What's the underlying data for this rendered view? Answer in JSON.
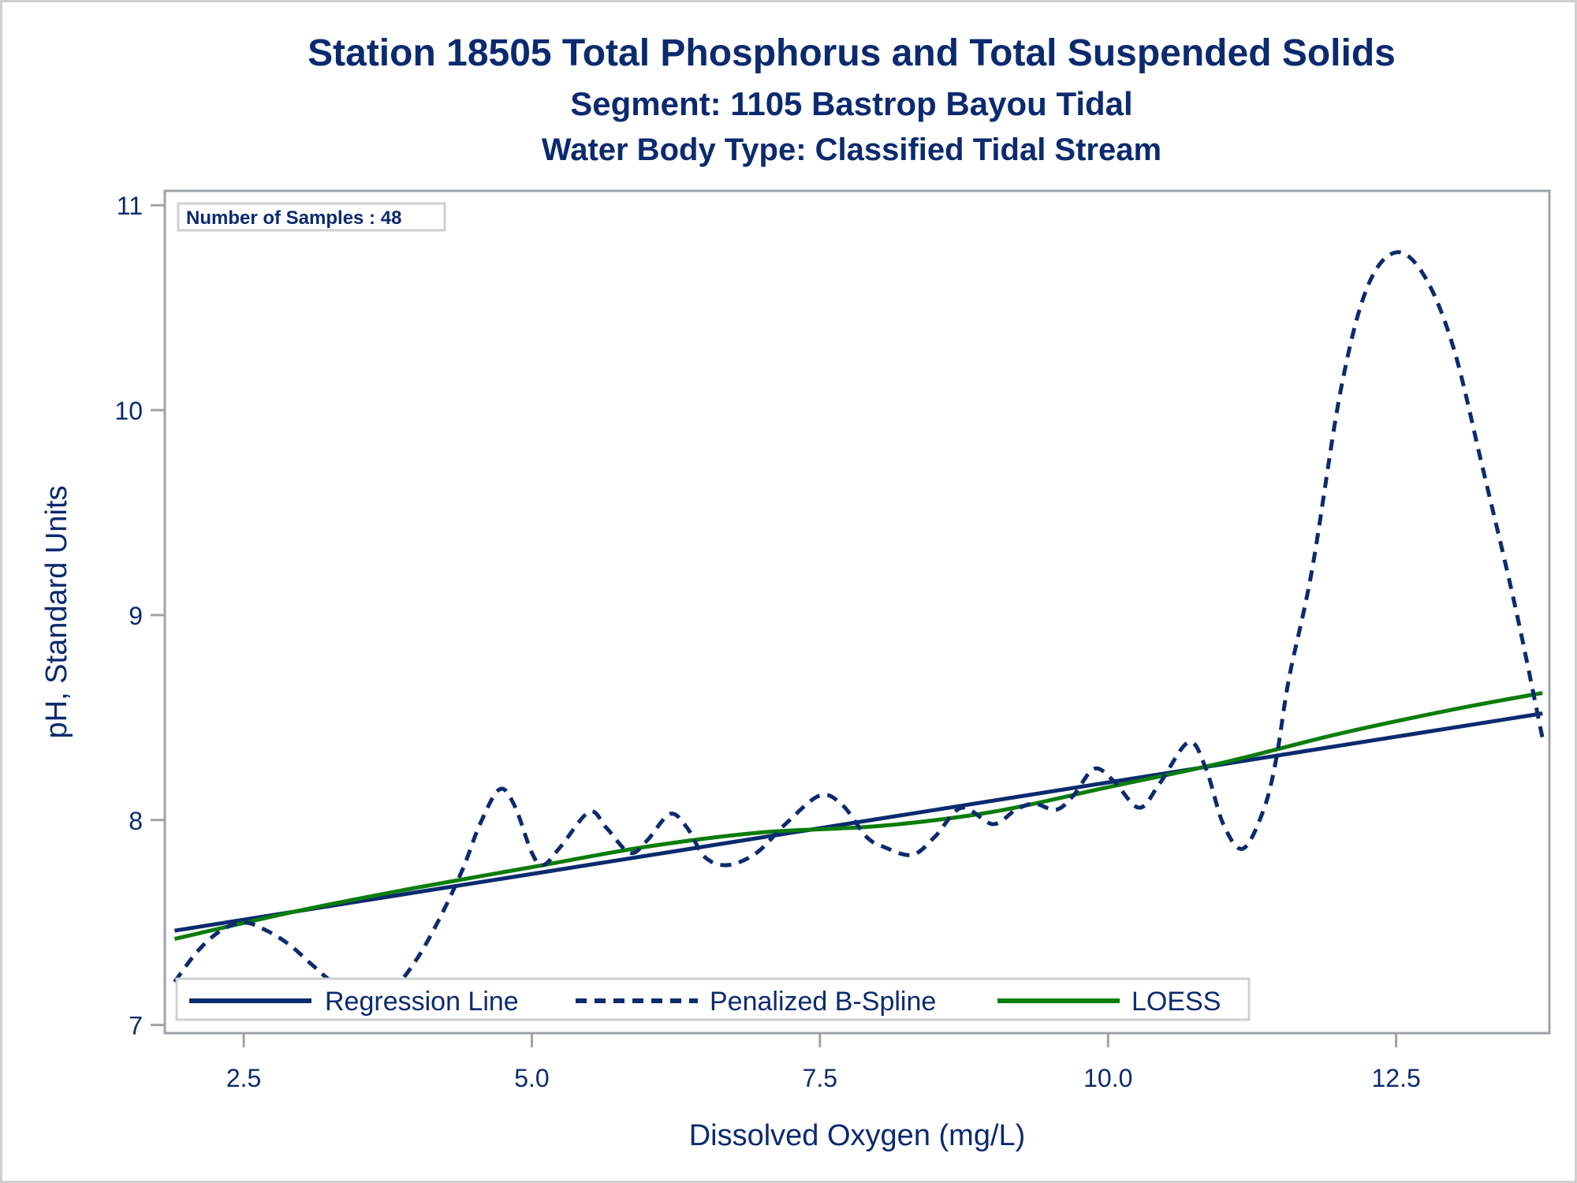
{
  "chart_data": {
    "type": "line",
    "title": "Station 18505  Total Phosphorus and Total Suspended Solids",
    "subtitle": "Segment: 1105  Bastrop Bayou Tidal",
    "subtitle2": "Water Body Type: Classified Tidal Stream",
    "xlabel": "Dissolved Oxygen (mg/L)",
    "ylabel": "pH, Standard Units",
    "xlim": [
      1.815,
      13.83
    ],
    "ylim": [
      6.96,
      11.07
    ],
    "xticks": [
      2.5,
      5.0,
      7.5,
      10.0,
      12.5
    ],
    "xtick_labels": [
      "2.5",
      "5.0",
      "7.5",
      "10.0",
      "12.5"
    ],
    "yticks": [
      7,
      8,
      9,
      10,
      11
    ],
    "ytick_labels": [
      "7",
      "8",
      "9",
      "10",
      "11"
    ],
    "grid": false,
    "inset": "Number of Samples : 48",
    "legend_position": "bottom-left-inside",
    "colors": {
      "navy": "#0b2a6f",
      "green": "#0a7d0a",
      "axis": "#9ea3a7",
      "legend_border": "#d0d0d0"
    },
    "series": [
      {
        "name": "Regression Line",
        "style": "solid",
        "color": "#0b2a6f",
        "x": [
          1.9,
          13.77
        ],
        "y": [
          7.46,
          8.52
        ]
      },
      {
        "name": "Penalized B-Spline",
        "style": "dashed",
        "color": "#0b2a6f",
        "x": [
          1.9,
          2.1,
          2.3,
          2.5,
          2.7,
          2.9,
          3.1,
          3.3,
          3.6,
          3.8,
          4.0,
          4.2,
          4.4,
          4.55,
          4.72,
          4.85,
          5.0,
          5.1,
          5.25,
          5.5,
          5.65,
          5.85,
          6.0,
          6.2,
          6.35,
          6.5,
          6.7,
          6.95,
          7.2,
          7.5,
          7.7,
          7.9,
          8.05,
          8.3,
          8.5,
          8.73,
          9.0,
          9.2,
          9.36,
          9.55,
          9.7,
          9.88,
          10.05,
          10.27,
          10.45,
          10.7,
          10.85,
          11.0,
          11.17,
          11.35,
          11.46,
          11.57,
          11.77,
          12.02,
          12.25,
          12.5,
          12.75,
          13.0,
          13.25,
          13.53,
          13.77
        ],
        "y": [
          7.21,
          7.36,
          7.46,
          7.5,
          7.46,
          7.39,
          7.29,
          7.2,
          7.14,
          7.18,
          7.32,
          7.52,
          7.76,
          7.98,
          8.15,
          8.07,
          7.84,
          7.78,
          7.87,
          8.04,
          7.96,
          7.84,
          7.9,
          8.03,
          7.96,
          7.82,
          7.78,
          7.84,
          7.98,
          8.12,
          8.07,
          7.92,
          7.87,
          7.83,
          7.92,
          8.06,
          7.98,
          8.05,
          8.08,
          8.05,
          8.12,
          8.25,
          8.19,
          8.06,
          8.18,
          8.38,
          8.25,
          7.98,
          7.86,
          8.05,
          8.3,
          8.69,
          9.22,
          10.1,
          10.6,
          10.77,
          10.65,
          10.3,
          9.72,
          9.05,
          8.4
        ]
      },
      {
        "name": "LOESS",
        "style": "solid",
        "color": "#0a7d0a",
        "x": [
          1.9,
          3.0,
          4.0,
          5.0,
          6.0,
          7.0,
          8.0,
          9.0,
          10.0,
          11.0,
          12.0,
          13.0,
          13.77
        ],
        "y": [
          7.42,
          7.56,
          7.67,
          7.77,
          7.87,
          7.94,
          7.97,
          8.04,
          8.16,
          8.28,
          8.42,
          8.54,
          8.62
        ]
      }
    ]
  }
}
